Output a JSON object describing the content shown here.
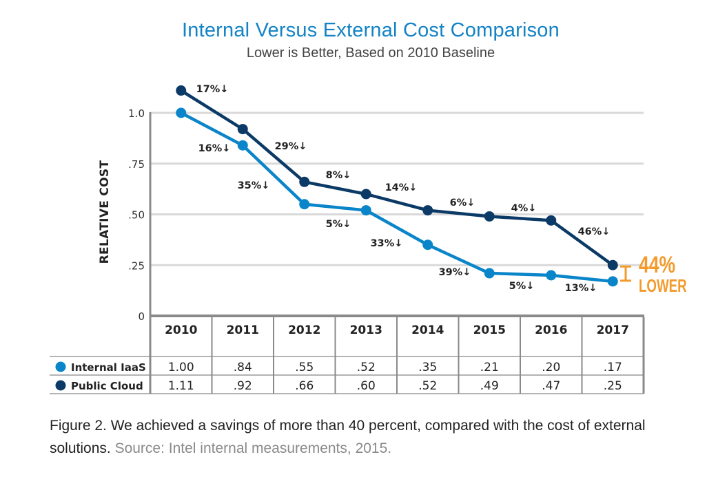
{
  "chart_data": {
    "type": "line",
    "title": "Internal Versus External Cost Comparison",
    "subtitle": "Lower is Better, Based on 2010 Baseline",
    "xlabel": "",
    "ylabel": "RELATIVE COST",
    "ylim": [
      0,
      1.11
    ],
    "yticks": [
      0,
      0.25,
      0.5,
      0.75,
      1.0
    ],
    "ytick_labels": [
      "0",
      ".25",
      ".50",
      ".75",
      "1.0"
    ],
    "grid": true,
    "categories": [
      "2010",
      "2011",
      "2012",
      "2013",
      "2014",
      "2015",
      "2016",
      "2017"
    ],
    "series": [
      {
        "name": "Internal IaaS",
        "color": "#0a85c9",
        "values": [
          1.0,
          0.84,
          0.55,
          0.52,
          0.35,
          0.21,
          0.2,
          0.17
        ],
        "table_values": [
          "1.00",
          ".84",
          ".55",
          ".52",
          ".35",
          ".21",
          ".20",
          ".17"
        ],
        "change_labels": [
          "16%↓",
          "35%↓",
          "5%↓",
          "33%↓",
          "39%↓",
          "5%↓",
          "13%↓"
        ]
      },
      {
        "name": "Public Cloud",
        "color": "#0b3a66",
        "values": [
          1.11,
          0.92,
          0.66,
          0.6,
          0.52,
          0.49,
          0.47,
          0.25
        ],
        "table_values": [
          "1.11",
          ".92",
          ".66",
          ".60",
          ".52",
          ".49",
          ".47",
          ".25"
        ],
        "change_labels": [
          "17%↓",
          "29%↓",
          "8%↓",
          "14%↓",
          "6%↓",
          "4%↓",
          "46%↓"
        ]
      }
    ],
    "callout": {
      "value": "44%",
      "label": "LOWER",
      "color": "#f39a2b"
    },
    "legend_placement": "bottom-left (data table)"
  },
  "caption": {
    "main": "Figure 2. We achieved a savings of more than 40 percent, compared with the cost of external solutions.",
    "source": "Source: Intel internal measurements, 2015."
  }
}
